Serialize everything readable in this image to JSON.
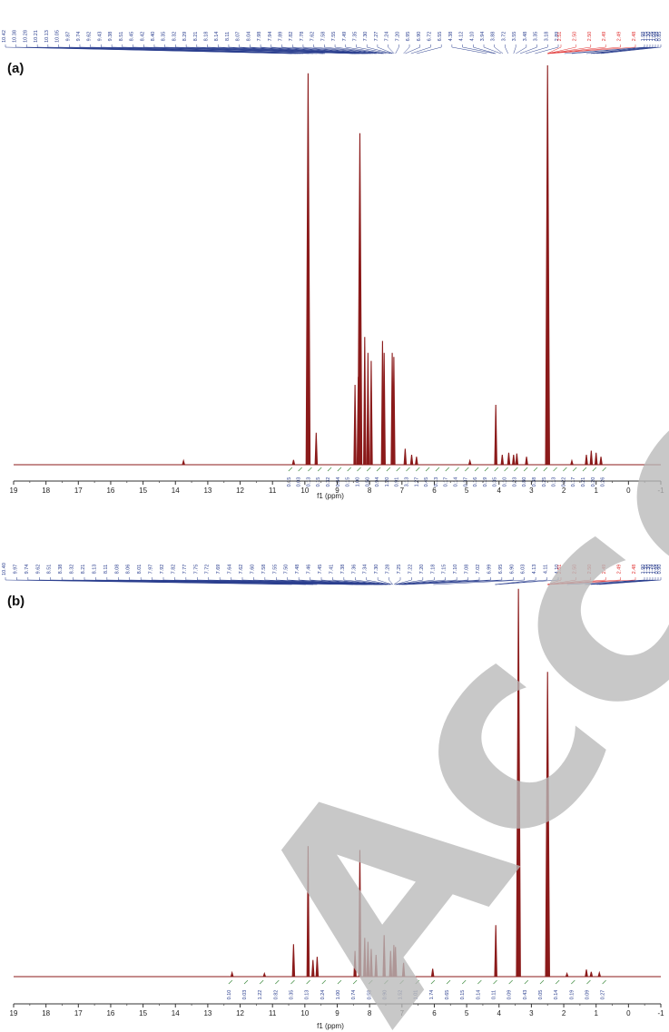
{
  "watermark": "Accepted",
  "colors": {
    "spectrum": "#8b1a1a",
    "peak_list_blue": "#2b3f8f",
    "peak_list_red": "#e03030",
    "integral_green": "#3d8a3d",
    "watermark": "#b9b9b9"
  },
  "chart_data": [
    {
      "type": "line",
      "panel_label": "(a)",
      "xlabel": "f1 (ppm)",
      "xlim": [
        19,
        -1
      ],
      "x_reversed": true,
      "x_ticks": [
        "19",
        "18",
        "17",
        "16",
        "15",
        "14",
        "13",
        "12",
        "11",
        "10",
        "9",
        "8",
        "7",
        "6",
        "5",
        "4",
        "3",
        "2",
        "1",
        "0",
        "-1"
      ],
      "grid": false,
      "peaks": [
        {
          "ppm": 13.75,
          "h": 0.01
        },
        {
          "ppm": 10.35,
          "h": 0.012
        },
        {
          "ppm": 9.9,
          "h": 0.98
        },
        {
          "ppm": 9.65,
          "h": 0.08
        },
        {
          "ppm": 8.45,
          "h": 0.2
        },
        {
          "ppm": 8.35,
          "h": 0.22
        },
        {
          "ppm": 8.3,
          "h": 0.83
        },
        {
          "ppm": 8.15,
          "h": 0.32
        },
        {
          "ppm": 8.05,
          "h": 0.28
        },
        {
          "ppm": 7.95,
          "h": 0.26
        },
        {
          "ppm": 7.6,
          "h": 0.31
        },
        {
          "ppm": 7.55,
          "h": 0.28
        },
        {
          "ppm": 7.3,
          "h": 0.28
        },
        {
          "ppm": 7.25,
          "h": 0.27
        },
        {
          "ppm": 6.9,
          "h": 0.04
        },
        {
          "ppm": 6.7,
          "h": 0.025
        },
        {
          "ppm": 6.55,
          "h": 0.02
        },
        {
          "ppm": 4.9,
          "h": 0.01
        },
        {
          "ppm": 4.1,
          "h": 0.15
        },
        {
          "ppm": 3.9,
          "h": 0.025
        },
        {
          "ppm": 3.7,
          "h": 0.03
        },
        {
          "ppm": 3.55,
          "h": 0.025
        },
        {
          "ppm": 3.45,
          "h": 0.028
        },
        {
          "ppm": 3.15,
          "h": 0.02
        },
        {
          "ppm": 2.5,
          "h": 1.0
        },
        {
          "ppm": 1.75,
          "h": 0.01
        },
        {
          "ppm": 1.3,
          "h": 0.025
        },
        {
          "ppm": 1.15,
          "h": 0.035
        },
        {
          "ppm": 1.0,
          "h": 0.03
        },
        {
          "ppm": 0.85,
          "h": 0.02
        }
      ],
      "top_peak_list": [
        "10.42",
        "10.38",
        "10.28",
        "10.21",
        "10.13",
        "10.05",
        "9.87",
        "9.74",
        "9.62",
        "9.43",
        "9.38",
        "8.51",
        "8.45",
        "8.42",
        "8.40",
        "8.35",
        "8.32",
        "8.29",
        "8.21",
        "8.18",
        "8.14",
        "8.11",
        "8.07",
        "8.04",
        "7.98",
        "7.94",
        "7.89",
        "7.82",
        "7.78",
        "7.62",
        "7.58",
        "7.55",
        "7.49",
        "7.35",
        "7.30",
        "7.27",
        "7.24",
        "7.20",
        "6.95",
        "6.90",
        "6.72",
        "6.55",
        "4.38",
        "4.12",
        "4.10",
        "3.94",
        "3.88",
        "3.72",
        "3.55",
        "3.48",
        "3.35",
        "3.18",
        "2.89",
        "2.51",
        "2.50",
        "2.50",
        "2.49",
        "2.49",
        "2.48",
        "1.98",
        "1.75",
        "1.30",
        "1.16",
        "1.08",
        "0.98",
        "0.85"
      ],
      "integrals": [
        "0.15",
        "0.03",
        "0.13",
        "0.15",
        "0.32",
        "0.84",
        "0.15",
        "1.00",
        "0.50",
        "0.94",
        "1.20",
        "0.91",
        "3.13",
        "1.27",
        "0.45",
        "0.13",
        "0.17",
        "0.14",
        "0.37",
        "0.16",
        "0.19",
        "0.35",
        "0.10",
        "0.23",
        "0.80",
        "0.38",
        "0.25",
        "0.13",
        "0.22",
        "0.17",
        "0.21",
        "0.20",
        "0.26"
      ]
    },
    {
      "type": "line",
      "panel_label": "(b)",
      "xlabel": "f1 (ppm)",
      "xlim": [
        19,
        -1
      ],
      "x_reversed": true,
      "x_ticks": [
        "19",
        "18",
        "17",
        "16",
        "15",
        "14",
        "13",
        "12",
        "11",
        "10",
        "9",
        "8",
        "7",
        "6",
        "5",
        "4",
        "3",
        "2",
        "1",
        "0",
        "-1"
      ],
      "grid": false,
      "peaks": [
        {
          "ppm": 12.25,
          "h": 0.01
        },
        {
          "ppm": 11.25,
          "h": 0.008
        },
        {
          "ppm": 10.35,
          "h": 0.082
        },
        {
          "ppm": 9.9,
          "h": 0.33
        },
        {
          "ppm": 9.75,
          "h": 0.042
        },
        {
          "ppm": 9.62,
          "h": 0.05
        },
        {
          "ppm": 8.45,
          "h": 0.065
        },
        {
          "ppm": 8.3,
          "h": 0.32
        },
        {
          "ppm": 8.15,
          "h": 0.098
        },
        {
          "ppm": 8.05,
          "h": 0.088
        },
        {
          "ppm": 7.95,
          "h": 0.07
        },
        {
          "ppm": 7.8,
          "h": 0.055
        },
        {
          "ppm": 7.55,
          "h": 0.105
        },
        {
          "ppm": 7.35,
          "h": 0.065
        },
        {
          "ppm": 7.25,
          "h": 0.08
        },
        {
          "ppm": 7.2,
          "h": 0.075
        },
        {
          "ppm": 6.95,
          "h": 0.035
        },
        {
          "ppm": 6.05,
          "h": 0.02
        },
        {
          "ppm": 4.1,
          "h": 0.13
        },
        {
          "ppm": 3.4,
          "h": 0.98
        },
        {
          "ppm": 2.5,
          "h": 0.77
        },
        {
          "ppm": 1.9,
          "h": 0.008
        },
        {
          "ppm": 1.3,
          "h": 0.018
        },
        {
          "ppm": 1.15,
          "h": 0.012
        },
        {
          "ppm": 0.9,
          "h": 0.01
        }
      ],
      "top_peak_list": [
        "10.40",
        "9.97",
        "9.74",
        "9.62",
        "8.51",
        "8.38",
        "8.32",
        "8.21",
        "8.13",
        "8.11",
        "8.08",
        "8.06",
        "8.01",
        "7.97",
        "7.92",
        "7.82",
        "7.77",
        "7.75",
        "7.72",
        "7.69",
        "7.64",
        "7.62",
        "7.60",
        "7.58",
        "7.55",
        "7.50",
        "7.48",
        "7.46",
        "7.45",
        "7.41",
        "7.38",
        "7.36",
        "7.34",
        "7.30",
        "7.28",
        "7.25",
        "7.22",
        "7.20",
        "7.18",
        "7.15",
        "7.10",
        "7.08",
        "7.02",
        "6.99",
        "6.95",
        "6.90",
        "6.03",
        "4.13",
        "4.11",
        "4.10",
        "2.51",
        "2.50",
        "2.50",
        "2.49",
        "2.49",
        "2.48",
        "1.90",
        "1.35",
        "1.30",
        "1.24",
        "1.16",
        "0.98",
        "0.90"
      ],
      "integrals": [
        "0.10",
        "0.03",
        "1.22",
        "0.82",
        "0.35",
        "0.13",
        "0.24",
        "1.00",
        "0.74",
        "0.58",
        "0.90",
        "1.52",
        "1.01",
        "1.74",
        "0.65",
        "0.15",
        "0.14",
        "0.11",
        "0.09",
        "0.43",
        "0.05",
        "0.14",
        "0.19",
        "0.09",
        "0.27"
      ]
    }
  ]
}
